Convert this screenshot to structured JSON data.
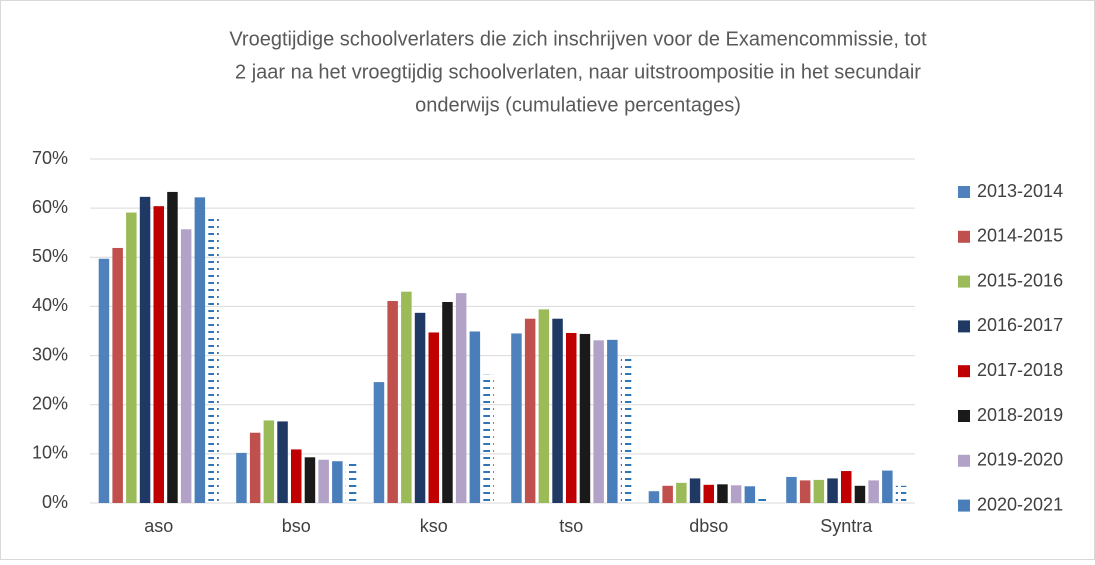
{
  "chart_data": {
    "type": "bar",
    "title": [
      "Vroegtijdige schoolverlaters die zich inschrijven voor de Examencommissie, tot",
      "2 jaar na het vroegtijdig schoolverlaten, naar uitstroompositie in het secundair",
      "onderwijs (cumulatieve percentages)"
    ],
    "categories": [
      "aso",
      "bso",
      "kso",
      "tso",
      "dbso",
      "Syntra"
    ],
    "series": [
      {
        "name": "2013-2014",
        "color": "#4f81bd",
        "values": [
          49.7,
          10.2,
          24.6,
          34.5,
          2.4,
          5.3
        ]
      },
      {
        "name": "2014-2015",
        "color": "#c0504d",
        "values": [
          51.9,
          14.3,
          41.1,
          37.5,
          3.5,
          4.6
        ]
      },
      {
        "name": "2015-2016",
        "color": "#9bbb59",
        "values": [
          59.1,
          16.8,
          43.0,
          39.4,
          4.1,
          4.7
        ]
      },
      {
        "name": "2016-2017",
        "color": "#1f3864",
        "values": [
          62.3,
          16.6,
          38.7,
          37.5,
          5.0,
          5.0
        ]
      },
      {
        "name": "2017-2018",
        "color": "#c00000",
        "values": [
          60.4,
          10.9,
          34.7,
          34.6,
          3.7,
          6.5
        ]
      },
      {
        "name": "2018-2019",
        "color": "#1a1a1a",
        "values": [
          63.3,
          9.3,
          40.9,
          34.4,
          3.8,
          3.5
        ]
      },
      {
        "name": "2019-2020",
        "color": "#b3a2c7",
        "values": [
          55.7,
          8.8,
          42.7,
          33.1,
          3.6,
          4.6
        ]
      },
      {
        "name": "2020-2021",
        "color": "#4a7ebb",
        "values": [
          62.2,
          8.5,
          34.9,
          33.2,
          3.4,
          6.6
        ]
      },
      {
        "color": "#2e75b6",
        "pattern": "dashed",
        "values": [
          58.5,
          8.7,
          26.1,
          29.6,
          1.8,
          3.5
        ]
      }
    ],
    "ylim": [
      0,
      70
    ],
    "yticks": [
      {
        "value": 0,
        "label": "0%"
      },
      {
        "value": 10,
        "label": "10%"
      },
      {
        "value": 20,
        "label": "20%"
      },
      {
        "value": 30,
        "label": "30%"
      },
      {
        "value": 40,
        "label": "40%"
      },
      {
        "value": 50,
        "label": "50%"
      },
      {
        "value": 60,
        "label": "60%"
      },
      {
        "value": 70,
        "label": "70%"
      }
    ],
    "grid": true,
    "legend": "right"
  }
}
